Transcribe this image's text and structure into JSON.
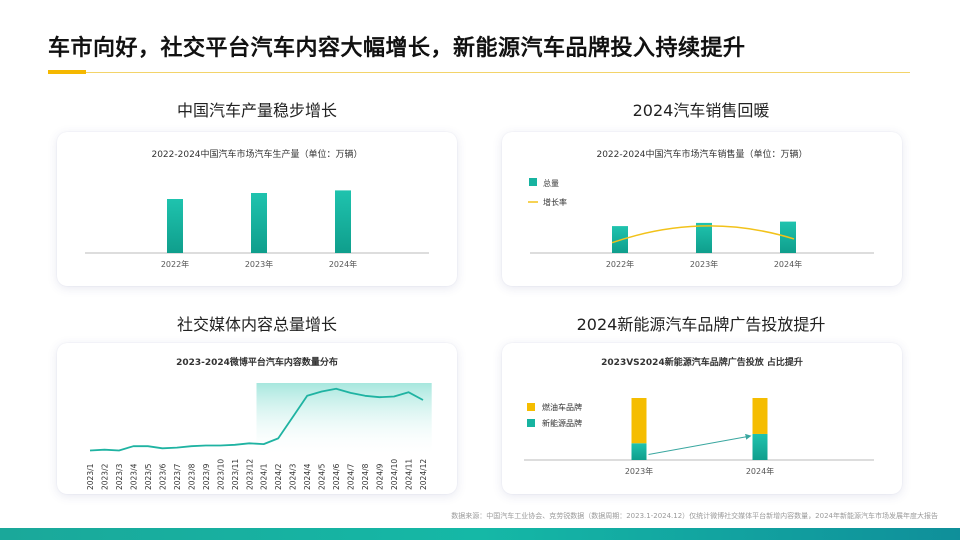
{
  "page": {
    "title": "车市向好，社交平台汽车内容大幅增长，新能源汽车品牌投入持续提升",
    "footnote": "数据来源：中国汽车工业协会、克劳锐数据（数据周期：2023.1-2024.12）仅统计微博社交媒体平台新增内容数量，2024年新能源汽车市场发展年度大报告"
  },
  "colors": {
    "teal": "#17b3a0",
    "teal_dark": "#0e9b8a",
    "yellow": "#f5bd00",
    "line": "#f2c21a",
    "axis": "#bbbbbb"
  },
  "sections": {
    "production": {
      "heading": "中国汽车产量稳步增长"
    },
    "sales": {
      "heading": "2024汽车销售回暖"
    },
    "social": {
      "heading": "社交媒体内容总量增长"
    },
    "nev": {
      "heading": "2024新能源汽车品牌广告投放提升"
    }
  },
  "chart_data": [
    {
      "id": "production",
      "type": "bar",
      "title": "2022-2024中国汽车市场汽车生产量（单位：万辆）",
      "categories": [
        "2022年",
        "2023年",
        "2024年"
      ],
      "values": [
        2700,
        3000,
        3130
      ],
      "ylim": [
        0,
        4000
      ],
      "grid": false
    },
    {
      "id": "sales",
      "type": "bar",
      "title": "2022-2024中国汽车市场汽车销售量（单位：万辆）",
      "categories": [
        "2022年",
        "2023年",
        "2024年"
      ],
      "series": [
        {
          "name": "总量",
          "type": "bar",
          "values": [
            2690,
            3010,
            3140
          ]
        },
        {
          "name": "增长率",
          "type": "line",
          "values": [
            2.1,
            12.0,
            4.5
          ]
        }
      ],
      "ylim": [
        0,
        4000
      ],
      "legend": "top-left"
    },
    {
      "id": "social",
      "type": "line",
      "title": "2023-2024微博平台汽车内容数量分布",
      "categories": [
        "2023/1",
        "2023/2",
        "2023/3",
        "2023/4",
        "2023/5",
        "2023/6",
        "2023/7",
        "2023/8",
        "2023/9",
        "2023/10",
        "2023/11",
        "2023/12",
        "2024/1",
        "2024/2",
        "2024/3",
        "2024/4",
        "2024/5",
        "2024/6",
        "2024/7",
        "2024/8",
        "2024/9",
        "2024/10",
        "2024/11",
        "2024/12"
      ],
      "values": [
        5,
        6,
        5,
        11,
        11,
        8,
        9,
        11,
        12,
        12,
        13,
        15,
        14,
        22,
        52,
        82,
        88,
        92,
        86,
        82,
        80,
        81,
        87,
        76
      ],
      "ylim": [
        0,
        100
      ],
      "highlight_range": [
        "2024/1",
        "2024/12"
      ]
    },
    {
      "id": "nev",
      "type": "bar",
      "stacked": true,
      "title": "2023VS2024新能源汽车品牌广告投放 占比提升",
      "categories": [
        "2023年",
        "2024年"
      ],
      "series": [
        {
          "name": "燃油车品牌",
          "values": [
            73,
            58
          ]
        },
        {
          "name": "新能源品牌",
          "values": [
            27,
            42
          ]
        }
      ],
      "ylim": [
        0,
        100
      ],
      "legend": "top-left"
    }
  ]
}
